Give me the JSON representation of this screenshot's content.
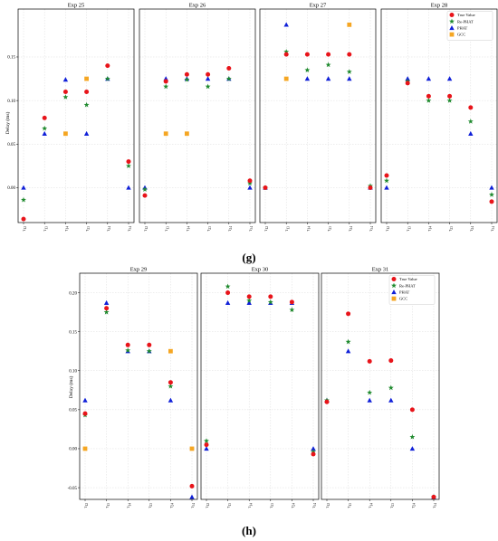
{
  "figure": {
    "ylabel": "Delay (ms)",
    "panel_labels": [
      "(g)",
      "(h)"
    ],
    "legend": [
      {
        "name": "True Value",
        "marker": "circle",
        "color": "#e8141a"
      },
      {
        "name": "Re-PHAT",
        "marker": "star",
        "color": "#1f8a2e"
      },
      {
        "name": "PHAT",
        "marker": "triangle",
        "color": "#1020d8"
      },
      {
        "name": "GCC",
        "marker": "square",
        "color": "#f5a623"
      }
    ],
    "x_tick_labels": [
      {
        "base": "τ",
        "sub": "12"
      },
      {
        "base": "τ",
        "sub": "13"
      },
      {
        "base": "τ",
        "sub": "14"
      },
      {
        "base": "τ",
        "sub": "23"
      },
      {
        "base": "τ",
        "sub": "24"
      },
      {
        "base": "τ",
        "sub": "34"
      }
    ]
  },
  "chart_data": [
    {
      "type": "scatter",
      "title": "Exp 25",
      "row": "g",
      "ylim": [
        -0.04,
        0.205
      ],
      "yticks": [
        0.0,
        0.05,
        0.1,
        0.15
      ],
      "ytick_labels": [
        "0.00",
        "0.05",
        "0.10",
        "0.15"
      ],
      "series": [
        {
          "name": "True Value",
          "values": [
            -0.036,
            0.08,
            0.11,
            0.11,
            0.14,
            0.03
          ]
        },
        {
          "name": "Re-PHAT",
          "values": [
            -0.014,
            0.068,
            0.104,
            0.095,
            0.125,
            0.025
          ]
        },
        {
          "name": "PHAT",
          "values": [
            0.0,
            0.062,
            0.124,
            0.062,
            0.125,
            0.0
          ]
        },
        {
          "name": "GCC",
          "values": [
            null,
            null,
            0.062,
            0.125,
            null,
            null
          ]
        }
      ]
    },
    {
      "type": "scatter",
      "title": "Exp 26",
      "row": "g",
      "ylim": [
        -0.04,
        0.205
      ],
      "yticks": [
        0.0,
        0.05,
        0.1,
        0.15
      ],
      "ytick_labels": [
        "0.00",
        "0.05",
        "0.10",
        "0.15"
      ],
      "series": [
        {
          "name": "True Value",
          "values": [
            -0.009,
            0.122,
            0.13,
            0.13,
            0.137,
            0.008
          ]
        },
        {
          "name": "Re-PHAT",
          "values": [
            -0.002,
            0.116,
            0.124,
            0.116,
            0.125,
            0.005
          ]
        },
        {
          "name": "PHAT",
          "values": [
            0.0,
            0.125,
            0.125,
            0.125,
            0.125,
            0.0
          ]
        },
        {
          "name": "GCC",
          "values": [
            null,
            0.062,
            0.062,
            null,
            null,
            null
          ]
        }
      ]
    },
    {
      "type": "scatter",
      "title": "Exp 27",
      "row": "g",
      "ylim": [
        -0.04,
        0.205
      ],
      "yticks": [
        0.0,
        0.05,
        0.1,
        0.15
      ],
      "ytick_labels": [
        "0.00",
        "0.05",
        "0.10",
        "0.15"
      ],
      "series": [
        {
          "name": "True Value",
          "values": [
            0.0,
            0.153,
            0.153,
            0.153,
            0.153,
            0.0
          ]
        },
        {
          "name": "Re-PHAT",
          "values": [
            0.0,
            0.156,
            0.135,
            0.141,
            0.133,
            0.002
          ]
        },
        {
          "name": "PHAT",
          "values": [
            0.0,
            0.187,
            0.125,
            0.125,
            0.125,
            0.0
          ]
        },
        {
          "name": "GCC",
          "values": [
            null,
            0.125,
            null,
            null,
            0.187,
            null
          ]
        }
      ]
    },
    {
      "type": "scatter",
      "title": "Exp 28",
      "row": "g",
      "ylim": [
        -0.04,
        0.205
      ],
      "yticks": [
        0.0,
        0.05,
        0.1,
        0.15
      ],
      "ytick_labels": [
        "0.00",
        "0.05",
        "0.10",
        "0.15"
      ],
      "legend_position": "top-right",
      "series": [
        {
          "name": "True Value",
          "values": [
            0.014,
            0.12,
            0.105,
            0.105,
            0.092,
            -0.016
          ]
        },
        {
          "name": "Re-PHAT",
          "values": [
            0.008,
            0.122,
            0.1,
            0.1,
            0.076,
            -0.008
          ]
        },
        {
          "name": "PHAT",
          "values": [
            0.0,
            0.125,
            0.125,
            0.125,
            0.062,
            0.0
          ]
        },
        {
          "name": "GCC",
          "values": [
            null,
            null,
            null,
            null,
            null,
            null
          ]
        }
      ]
    },
    {
      "type": "scatter",
      "title": "Exp 29",
      "row": "h",
      "ylim": [
        -0.065,
        0.225
      ],
      "yticks": [
        -0.05,
        0.0,
        0.05,
        0.1,
        0.15,
        0.2
      ],
      "ytick_labels": [
        "-0.05",
        "0.00",
        "0.05",
        "0.10",
        "0.15",
        "0.20"
      ],
      "series": [
        {
          "name": "True Value",
          "values": [
            0.045,
            0.18,
            0.133,
            0.133,
            0.085,
            -0.048
          ]
        },
        {
          "name": "Re-PHAT",
          "values": [
            0.043,
            0.175,
            0.126,
            0.125,
            0.08,
            null
          ]
        },
        {
          "name": "PHAT",
          "values": [
            0.062,
            0.187,
            0.125,
            0.125,
            0.062,
            -0.062
          ]
        },
        {
          "name": "GCC",
          "values": [
            0.0,
            null,
            null,
            null,
            0.125,
            0.0
          ]
        }
      ]
    },
    {
      "type": "scatter",
      "title": "Exp 30",
      "row": "h",
      "ylim": [
        -0.065,
        0.225
      ],
      "yticks": [
        -0.05,
        0.0,
        0.05,
        0.1,
        0.15,
        0.2
      ],
      "ytick_labels": [
        "-0.05",
        "0.00",
        "0.05",
        "0.10",
        "0.15",
        "0.20"
      ],
      "series": [
        {
          "name": "True Value",
          "values": [
            0.005,
            0.2,
            0.195,
            0.195,
            0.188,
            -0.007
          ]
        },
        {
          "name": "Re-PHAT",
          "values": [
            0.01,
            0.208,
            0.19,
            0.188,
            0.178,
            -0.004
          ]
        },
        {
          "name": "PHAT",
          "values": [
            0.0,
            0.187,
            0.187,
            0.187,
            0.187,
            0.0
          ]
        },
        {
          "name": "GCC",
          "values": [
            null,
            null,
            null,
            null,
            null,
            null
          ]
        }
      ]
    },
    {
      "type": "scatter",
      "title": "Exp 31",
      "row": "h",
      "ylim": [
        -0.065,
        0.225
      ],
      "yticks": [
        -0.05,
        0.0,
        0.05,
        0.1,
        0.15,
        0.2
      ],
      "ytick_labels": [
        "-0.05",
        "0.00",
        "0.05",
        "0.10",
        "0.15",
        "0.20"
      ],
      "legend_position": "top-right",
      "series": [
        {
          "name": "True Value",
          "values": [
            0.06,
            0.173,
            0.112,
            0.113,
            0.05,
            -0.062
          ]
        },
        {
          "name": "Re-PHAT",
          "values": [
            0.062,
            0.137,
            0.072,
            0.078,
            0.015,
            -0.062
          ]
        },
        {
          "name": "PHAT",
          "values": [
            0.062,
            0.125,
            0.062,
            0.062,
            0.0,
            -0.062
          ]
        },
        {
          "name": "GCC",
          "values": [
            null,
            null,
            null,
            null,
            null,
            null
          ]
        }
      ]
    }
  ]
}
